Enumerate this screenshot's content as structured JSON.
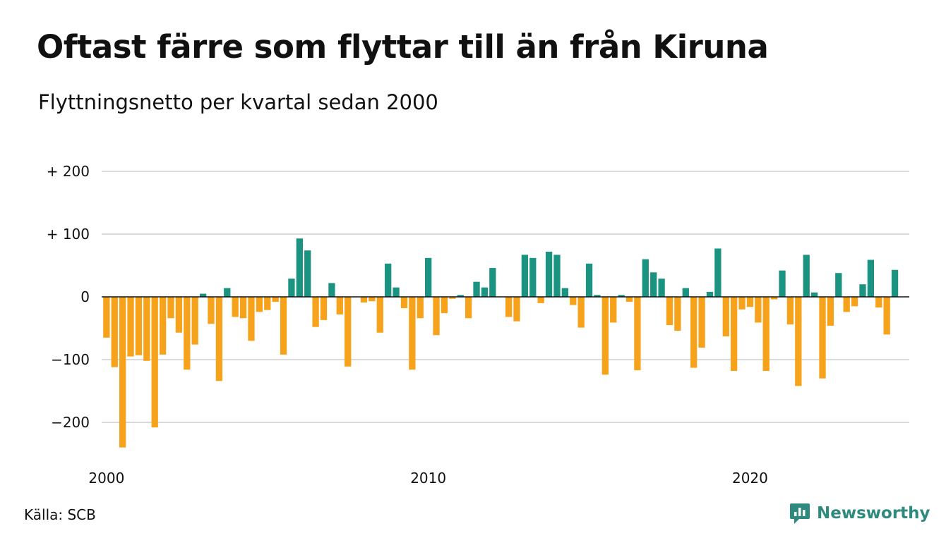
{
  "header": {
    "title": "Oftast färre som flyttar till än från Kiruna",
    "subtitle": "Flyttningsnetto per kvartal sedan 2000"
  },
  "footer": {
    "source": "Källa: SCB",
    "brand": "Newsworthy",
    "brand_icon": "bar-chart-speech-bubble-icon"
  },
  "colors": {
    "positive": "#1a9381",
    "negative": "#f7a21b",
    "grid": "#dadade",
    "brand": "#2f8a7e"
  },
  "chart_data": {
    "type": "bar",
    "title": "Oftast färre som flyttar till än från Kiruna",
    "subtitle": "Flyttningsnetto per kvartal sedan 2000",
    "xlabel": "",
    "ylabel": "",
    "x_start": "2000 Q1",
    "x_ticks": [
      {
        "label": "2000",
        "year": 2000
      },
      {
        "label": "2010",
        "year": 2010
      },
      {
        "label": "2020",
        "year": 2020
      }
    ],
    "y_ticks": [
      {
        "value": 200,
        "label": "+ 200"
      },
      {
        "value": 100,
        "label": "+ 100"
      },
      {
        "value": 0,
        "label": "0"
      },
      {
        "value": -100,
        "label": "−100"
      },
      {
        "value": -200,
        "label": "−200"
      }
    ],
    "ylim": [
      -240,
      200
    ],
    "grid": true,
    "legend": "none",
    "values": [
      -65,
      -112,
      -240,
      -95,
      -93,
      -102,
      -208,
      -92,
      -34,
      -57,
      -116,
      -76,
      5,
      -43,
      -134,
      14,
      -32,
      -34,
      -70,
      -24,
      -21,
      -8,
      -92,
      29,
      93,
      74,
      -48,
      -37,
      22,
      -28,
      -111,
      0,
      -9,
      -7,
      -57,
      53,
      15,
      -18,
      -116,
      -34,
      62,
      -61,
      -26,
      -3,
      3,
      -34,
      24,
      15,
      46,
      0,
      -32,
      -39,
      67,
      62,
      -10,
      72,
      67,
      14,
      -13,
      -49,
      53,
      3,
      -124,
      -41,
      3,
      -8,
      -117,
      60,
      39,
      29,
      -45,
      -54,
      14,
      -113,
      -81,
      8,
      77,
      -63,
      -118,
      -20,
      -16,
      -41,
      -118,
      -4,
      42,
      -44,
      -142,
      67,
      7,
      -130,
      -46,
      38,
      -24,
      -15,
      20,
      59,
      -17,
      -60,
      43
    ]
  }
}
